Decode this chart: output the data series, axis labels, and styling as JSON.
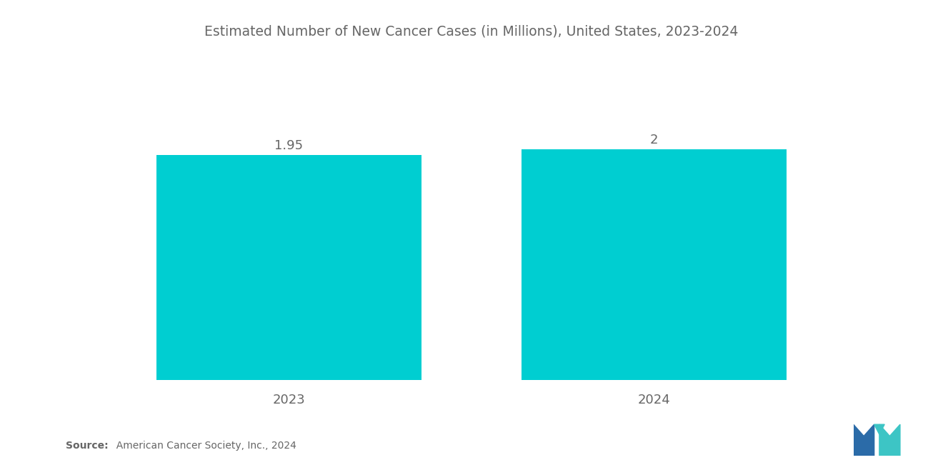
{
  "title": "Estimated Number of New Cancer Cases (in Millions), United States, 2023-2024",
  "categories": [
    "2023",
    "2024"
  ],
  "values": [
    1.95,
    2.0
  ],
  "bar_color": "#00CED1",
  "bar_labels": [
    "1.95",
    "2"
  ],
  "background_color": "#ffffff",
  "text_color": "#666666",
  "title_fontsize": 13.5,
  "label_fontsize": 13,
  "value_fontsize": 13,
  "source_bold": "Source:",
  "source_normal": "  American Cancer Society, Inc., 2024",
  "ylim": [
    0,
    2.8
  ],
  "bar_width": 0.32,
  "x_positions": [
    0.28,
    0.72
  ],
  "xlim": [
    0.0,
    1.0
  ],
  "logo_dark_blue": "#2B6BA8",
  "logo_teal": "#3DC5C5"
}
